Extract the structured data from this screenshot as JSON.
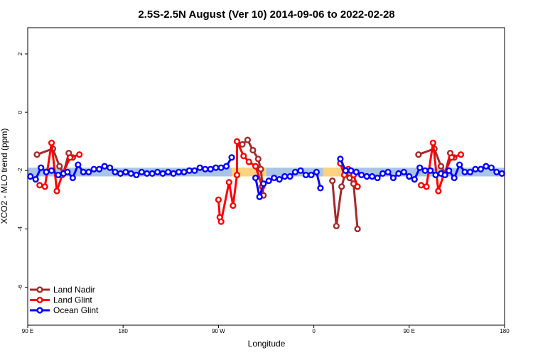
{
  "chart_data": {
    "type": "line",
    "title": "2.5S-2.5N August (Ver 10)   2014-09-06 to 2022-02-28",
    "xlabel": "Longitude",
    "ylabel": "XCO2 - MLO trend (ppm)",
    "xlim": [
      0,
      360
    ],
    "ylim": [
      -7.3,
      2.9
    ],
    "x_ticks": [
      {
        "value": 0,
        "label": "90 E"
      },
      {
        "value": 72,
        "label": "180"
      },
      {
        "value": 144,
        "label": "90 W"
      },
      {
        "value": 216,
        "label": "0"
      },
      {
        "value": 288,
        "label": "90 E"
      },
      {
        "value": 360,
        "label": "180"
      }
    ],
    "y_ticks": [
      {
        "value": -6,
        "label": "-6"
      },
      {
        "value": -4,
        "label": "-4"
      },
      {
        "value": -2,
        "label": "-2"
      },
      {
        "value": 0,
        "label": "0"
      },
      {
        "value": 2,
        "label": "2"
      }
    ],
    "bands": [
      {
        "x0": 0,
        "x1": 360,
        "y0": -2.2,
        "y1": -1.9,
        "color": "#a9c4e6"
      },
      {
        "x0": 154,
        "x1": 180,
        "y0": -2.2,
        "y1": -1.9,
        "color": "#ffd27f"
      },
      {
        "x0": 223,
        "x1": 240,
        "y0": -2.2,
        "y1": -1.9,
        "color": "#ffd27f"
      }
    ],
    "series": [
      {
        "name": "Land Nadir",
        "color": "#a52a2a",
        "segments": [
          [
            [
              7,
              -1.45
            ],
            [
              19,
              -1.25
            ],
            [
              24,
              -1.85
            ],
            [
              27,
              -2.1
            ],
            [
              31,
              -1.4
            ],
            [
              34,
              -1.55
            ]
          ],
          [
            [
              162,
              -1.1
            ],
            [
              166,
              -0.95
            ],
            [
              170,
              -1.3
            ],
            [
              174,
              -1.6
            ],
            [
              176,
              -1.95
            ],
            [
              178,
              -2.85
            ]
          ],
          [
            [
              230,
              -2.35
            ],
            [
              233,
              -3.9
            ],
            [
              237,
              -2.55
            ],
            [
              240,
              -2.05
            ],
            [
              243,
              -2.25
            ],
            [
              246,
              -2.45
            ],
            [
              249,
              -4.0
            ]
          ],
          [
            [
              295,
              -1.45
            ],
            [
              307,
              -1.25
            ],
            [
              312,
              -1.85
            ],
            [
              315,
              -2.1
            ],
            [
              319,
              -1.4
            ],
            [
              322,
              -1.55
            ]
          ]
        ]
      },
      {
        "name": "Land Glint",
        "color": "#ff0000",
        "segments": [
          [
            [
              9,
              -2.5
            ],
            [
              13,
              -2.55
            ],
            [
              18,
              -1.05
            ],
            [
              22,
              -2.7
            ],
            [
              26,
              -2.15
            ],
            [
              32,
              -1.55
            ],
            [
              39,
              -1.45
            ]
          ],
          [
            [
              144,
              -3.0
            ],
            [
              145,
              -3.6
            ],
            [
              146,
              -3.75
            ],
            [
              152,
              -2.4
            ],
            [
              155,
              -3.2
            ],
            [
              158,
              -2.15
            ],
            [
              158,
              -1.0
            ],
            [
              163,
              -1.5
            ],
            [
              167,
              -1.7
            ],
            [
              172,
              -1.85
            ],
            [
              177,
              -2.55
            ]
          ],
          [
            [
              236,
              -1.75
            ],
            [
              239,
              -2.15
            ],
            [
              242,
              -1.95
            ],
            [
              246,
              -2.15
            ],
            [
              249,
              -2.55
            ]
          ],
          [
            [
              297,
              -2.5
            ],
            [
              301,
              -2.55
            ],
            [
              306,
              -1.05
            ],
            [
              310,
              -2.7
            ],
            [
              314,
              -2.15
            ],
            [
              320,
              -1.55
            ],
            [
              327,
              -1.45
            ]
          ]
        ]
      },
      {
        "name": "Ocean Glint",
        "color": "#0000ff",
        "segments": [
          [
            [
              2,
              -2.2
            ],
            [
              6,
              -2.3
            ],
            [
              10,
              -1.9
            ],
            [
              14,
              -2.05
            ],
            [
              18,
              -2.0
            ],
            [
              23,
              -2.15
            ],
            [
              27,
              -2.1
            ],
            [
              30,
              -2.05
            ],
            [
              34,
              -2.25
            ],
            [
              38,
              -1.8
            ],
            [
              42,
              -2.05
            ],
            [
              46,
              -2.05
            ],
            [
              50,
              -1.95
            ],
            [
              54,
              -1.95
            ],
            [
              58,
              -1.85
            ],
            [
              62,
              -1.9
            ],
            [
              66,
              -2.05
            ],
            [
              70,
              -2.1
            ],
            [
              74,
              -2.05
            ],
            [
              78,
              -2.1
            ],
            [
              82,
              -2.15
            ],
            [
              86,
              -2.05
            ],
            [
              90,
              -2.1
            ],
            [
              94,
              -2.1
            ],
            [
              98,
              -2.05
            ],
            [
              102,
              -2.1
            ],
            [
              106,
              -2.05
            ],
            [
              110,
              -2.1
            ],
            [
              114,
              -2.05
            ],
            [
              118,
              -2.05
            ],
            [
              122,
              -2.0
            ],
            [
              126,
              -2.0
            ],
            [
              130,
              -1.9
            ],
            [
              134,
              -1.95
            ],
            [
              138,
              -1.95
            ],
            [
              142,
              -1.9
            ],
            [
              146,
              -1.9
            ],
            [
              150,
              -1.85
            ],
            [
              154,
              -1.55
            ]
          ],
          [
            [
              172,
              -2.25
            ],
            [
              175,
              -2.9
            ],
            [
              178,
              -2.45
            ],
            [
              182,
              -2.35
            ],
            [
              186,
              -2.25
            ],
            [
              190,
              -2.3
            ],
            [
              194,
              -2.2
            ],
            [
              198,
              -2.2
            ],
            [
              202,
              -2.05
            ],
            [
              206,
              -2.0
            ],
            [
              210,
              -2.15
            ],
            [
              214,
              -2.15
            ],
            [
              218,
              -2.05
            ],
            [
              221,
              -2.6
            ]
          ],
          [
            [
              236,
              -1.6
            ],
            [
              240,
              -2.0
            ],
            [
              244,
              -2.0
            ],
            [
              248,
              -2.05
            ],
            [
              252,
              -2.15
            ],
            [
              256,
              -2.2
            ],
            [
              260,
              -2.2
            ],
            [
              264,
              -2.25
            ],
            [
              268,
              -2.1
            ],
            [
              272,
              -2.05
            ],
            [
              276,
              -2.25
            ],
            [
              280,
              -2.1
            ],
            [
              284,
              -2.05
            ],
            [
              288,
              -2.2
            ],
            [
              292,
              -2.3
            ],
            [
              296,
              -1.9
            ],
            [
              300,
              -2.0
            ],
            [
              304,
              -2.0
            ],
            [
              308,
              -2.15
            ],
            [
              312,
              -2.1
            ],
            [
              315,
              -2.15
            ],
            [
              318,
              -2.0
            ],
            [
              322,
              -2.25
            ],
            [
              326,
              -1.8
            ],
            [
              330,
              -2.05
            ],
            [
              334,
              -2.05
            ],
            [
              338,
              -1.95
            ],
            [
              342,
              -1.95
            ],
            [
              346,
              -1.85
            ],
            [
              350,
              -1.9
            ],
            [
              354,
              -2.05
            ],
            [
              358,
              -2.1
            ]
          ]
        ]
      }
    ],
    "legend": {
      "position": "bottom-left"
    }
  }
}
